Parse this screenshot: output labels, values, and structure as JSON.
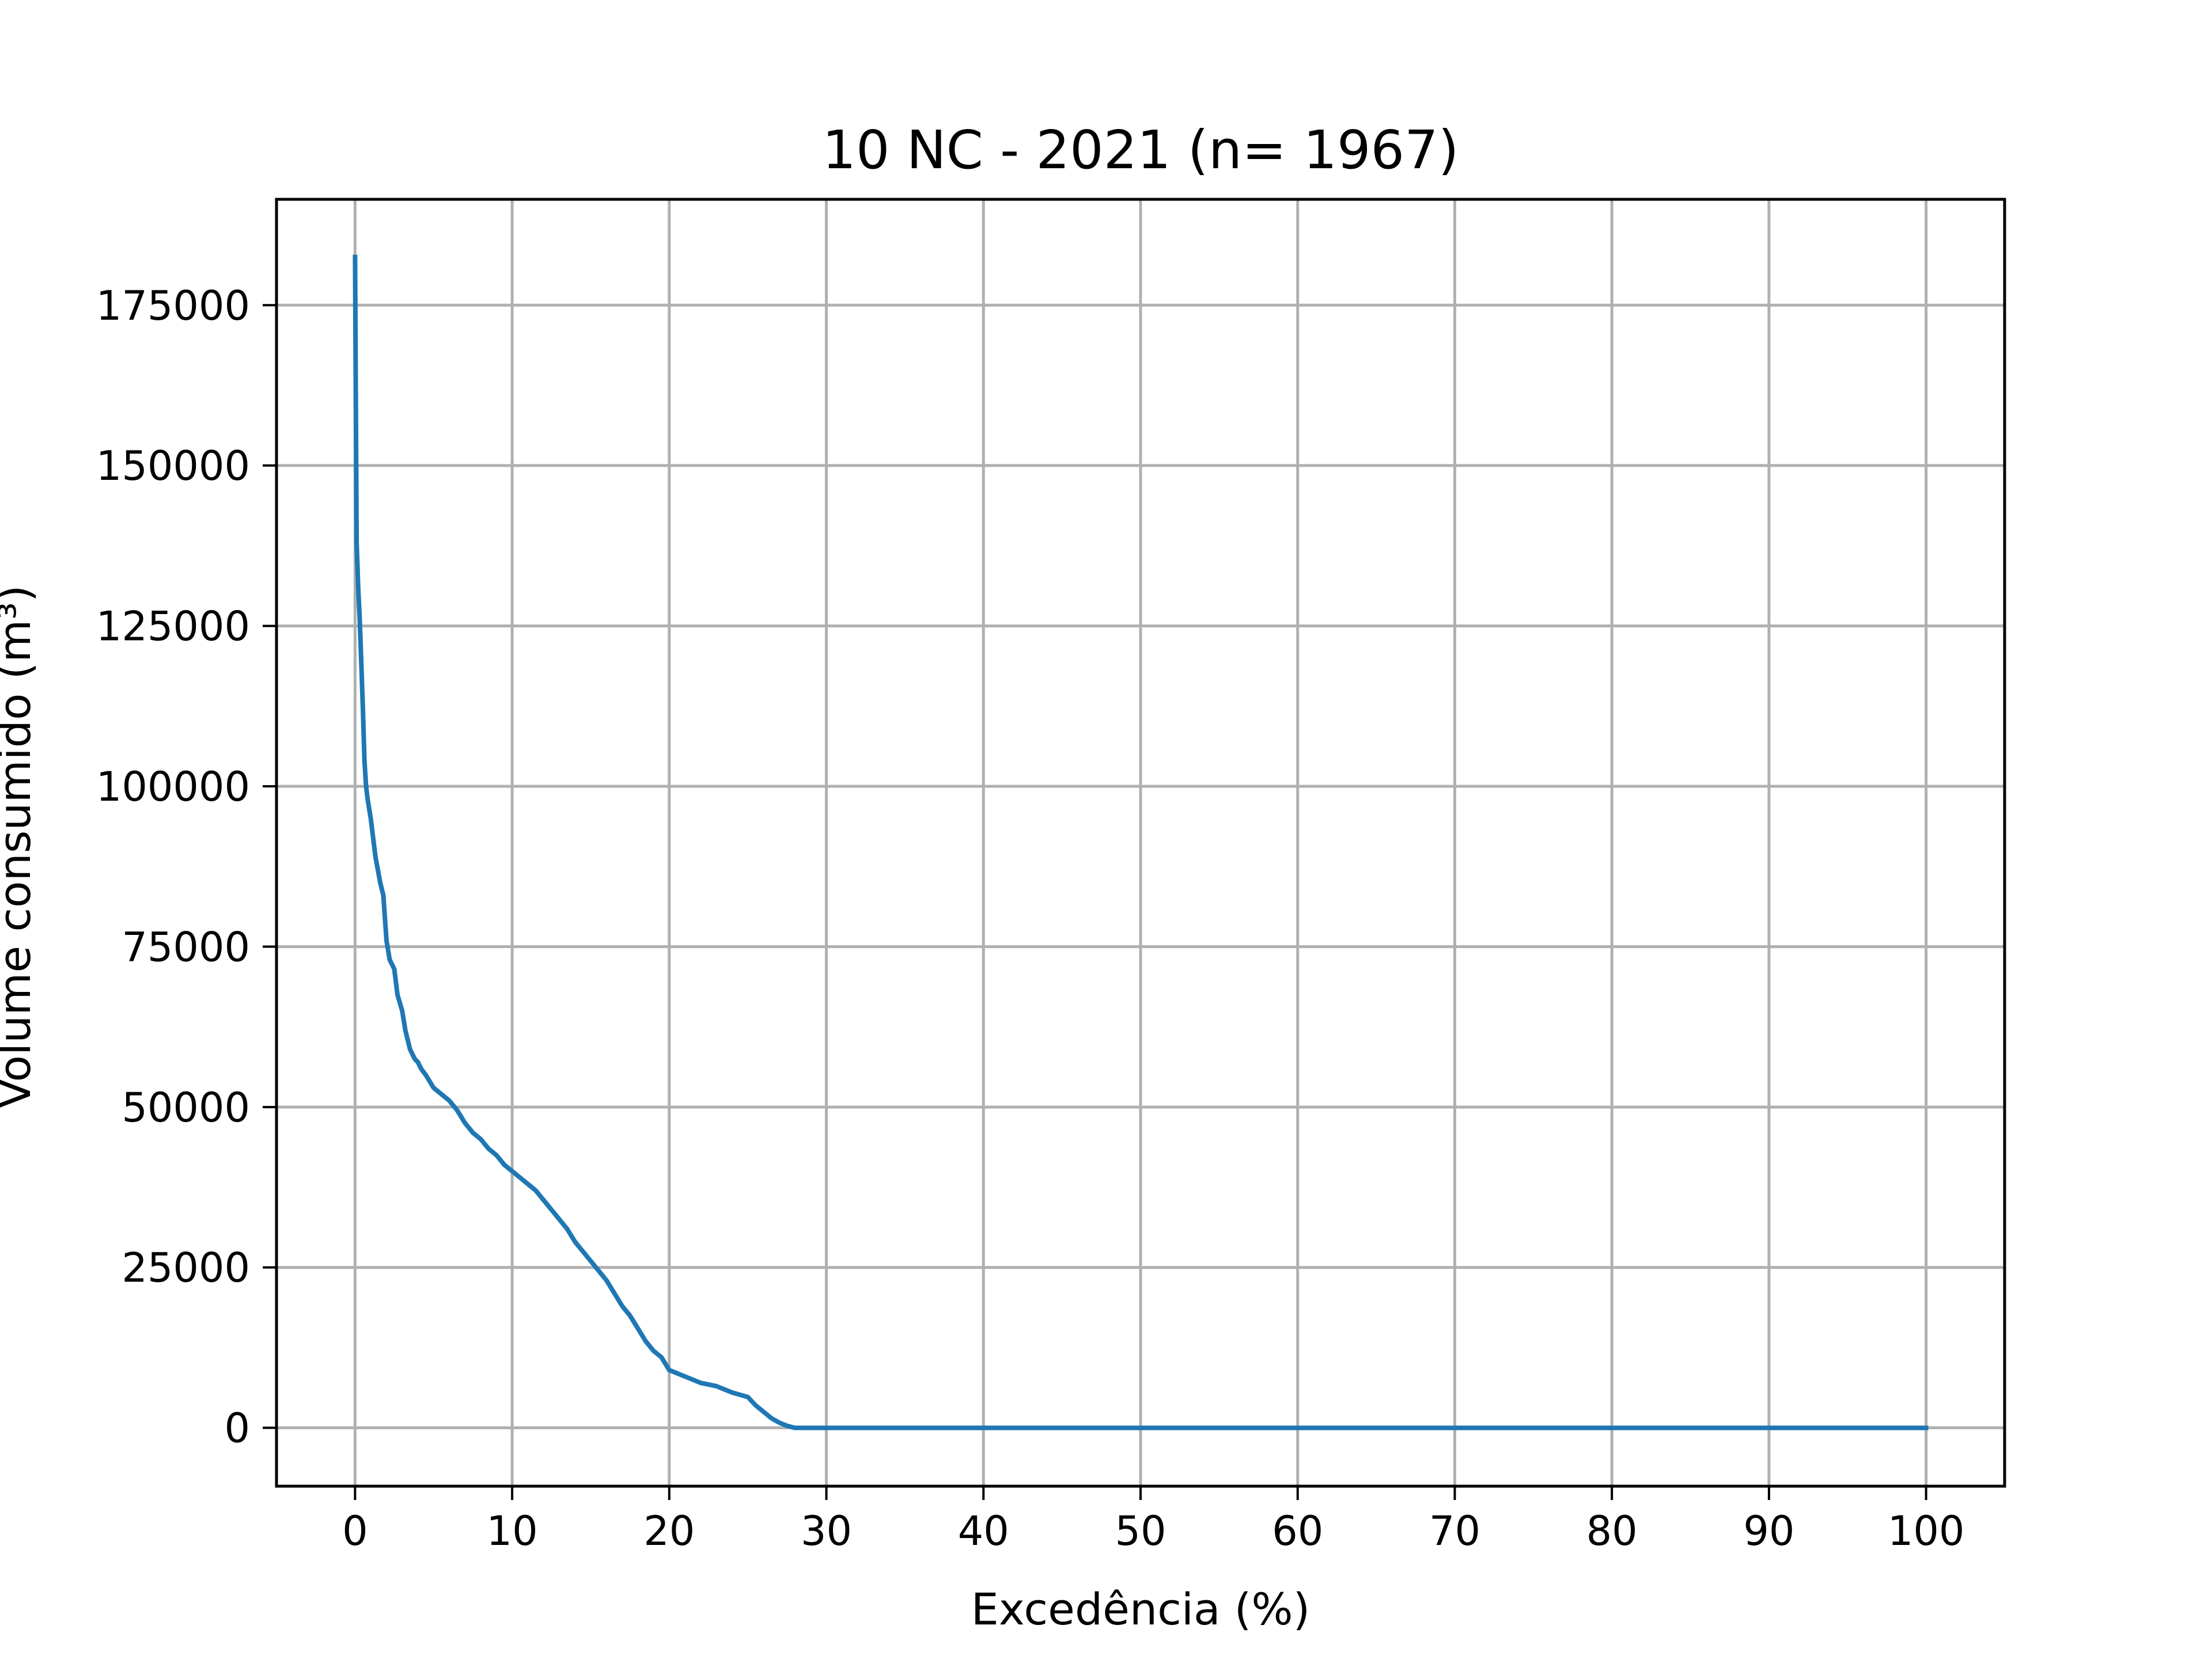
{
  "chart_data": {
    "type": "line",
    "title": "10 NC - 2021 (n= 1967)",
    "xlabel": "Excedência (%)",
    "ylabel": "Volume consumido (m³)",
    "xlim": [
      -5,
      105
    ],
    "ylim": [
      -9100,
      191500
    ],
    "xticks": [
      0,
      10,
      20,
      30,
      40,
      50,
      60,
      70,
      80,
      90,
      100
    ],
    "yticks": [
      0,
      25000,
      50000,
      75000,
      100000,
      125000,
      150000,
      175000
    ],
    "xtick_labels": [
      "0",
      "10",
      "20",
      "30",
      "40",
      "50",
      "60",
      "70",
      "80",
      "90",
      "100"
    ],
    "ytick_labels": [
      "0",
      "25000",
      "50000",
      "75000",
      "100000",
      "125000",
      "150000",
      "175000"
    ],
    "grid": true,
    "legend": false,
    "colors": {
      "line": "#1f77b4",
      "grid": "#b0b0b0",
      "axes": "#000000"
    },
    "series": [
      {
        "x": [
          0,
          0.05,
          0.1,
          0.2,
          0.3,
          0.4,
          0.5,
          0.6,
          0.7,
          0.8,
          1.0,
          1.3,
          1.6,
          1.8,
          2.0,
          2.2,
          2.5,
          2.7,
          3.0,
          3.2,
          3.5,
          3.8,
          4.0,
          4.2,
          4.5,
          5.0,
          5.5,
          6.0,
          6.5,
          7.0,
          7.5,
          8.0,
          8.5,
          9.0,
          9.5,
          10.0,
          10.5,
          11.0,
          11.5,
          12.0,
          12.5,
          13.0,
          13.5,
          14.0,
          14.5,
          15.0,
          15.5,
          16.0,
          16.5,
          17.0,
          17.5,
          18.0,
          18.5,
          19.0,
          19.5,
          20.0,
          20.5,
          21.0,
          22.0,
          23.0,
          24.0,
          25.0,
          25.5,
          26.0,
          26.5,
          27.0,
          27.5,
          28.0,
          35.0,
          50.0,
          70.0,
          90.0,
          100.0
        ],
        "y": [
          182500,
          160000,
          138000,
          131000,
          126000,
          119000,
          112000,
          104000,
          100000,
          98000,
          95000,
          89000,
          85000,
          83000,
          76000,
          73000,
          71500,
          67500,
          65000,
          62000,
          59000,
          57500,
          57000,
          56000,
          55000,
          53000,
          52000,
          51000,
          49500,
          47500,
          46000,
          45000,
          43500,
          42500,
          41000,
          40000,
          39000,
          38000,
          37000,
          35500,
          34000,
          32500,
          31000,
          29000,
          27500,
          26000,
          24500,
          23000,
          21000,
          19000,
          17500,
          15500,
          13500,
          12000,
          11000,
          9000,
          8500,
          8000,
          7000,
          6500,
          5500,
          4800,
          3500,
          2500,
          1500,
          800,
          300,
          0,
          0,
          0,
          0,
          0,
          0
        ]
      }
    ]
  }
}
